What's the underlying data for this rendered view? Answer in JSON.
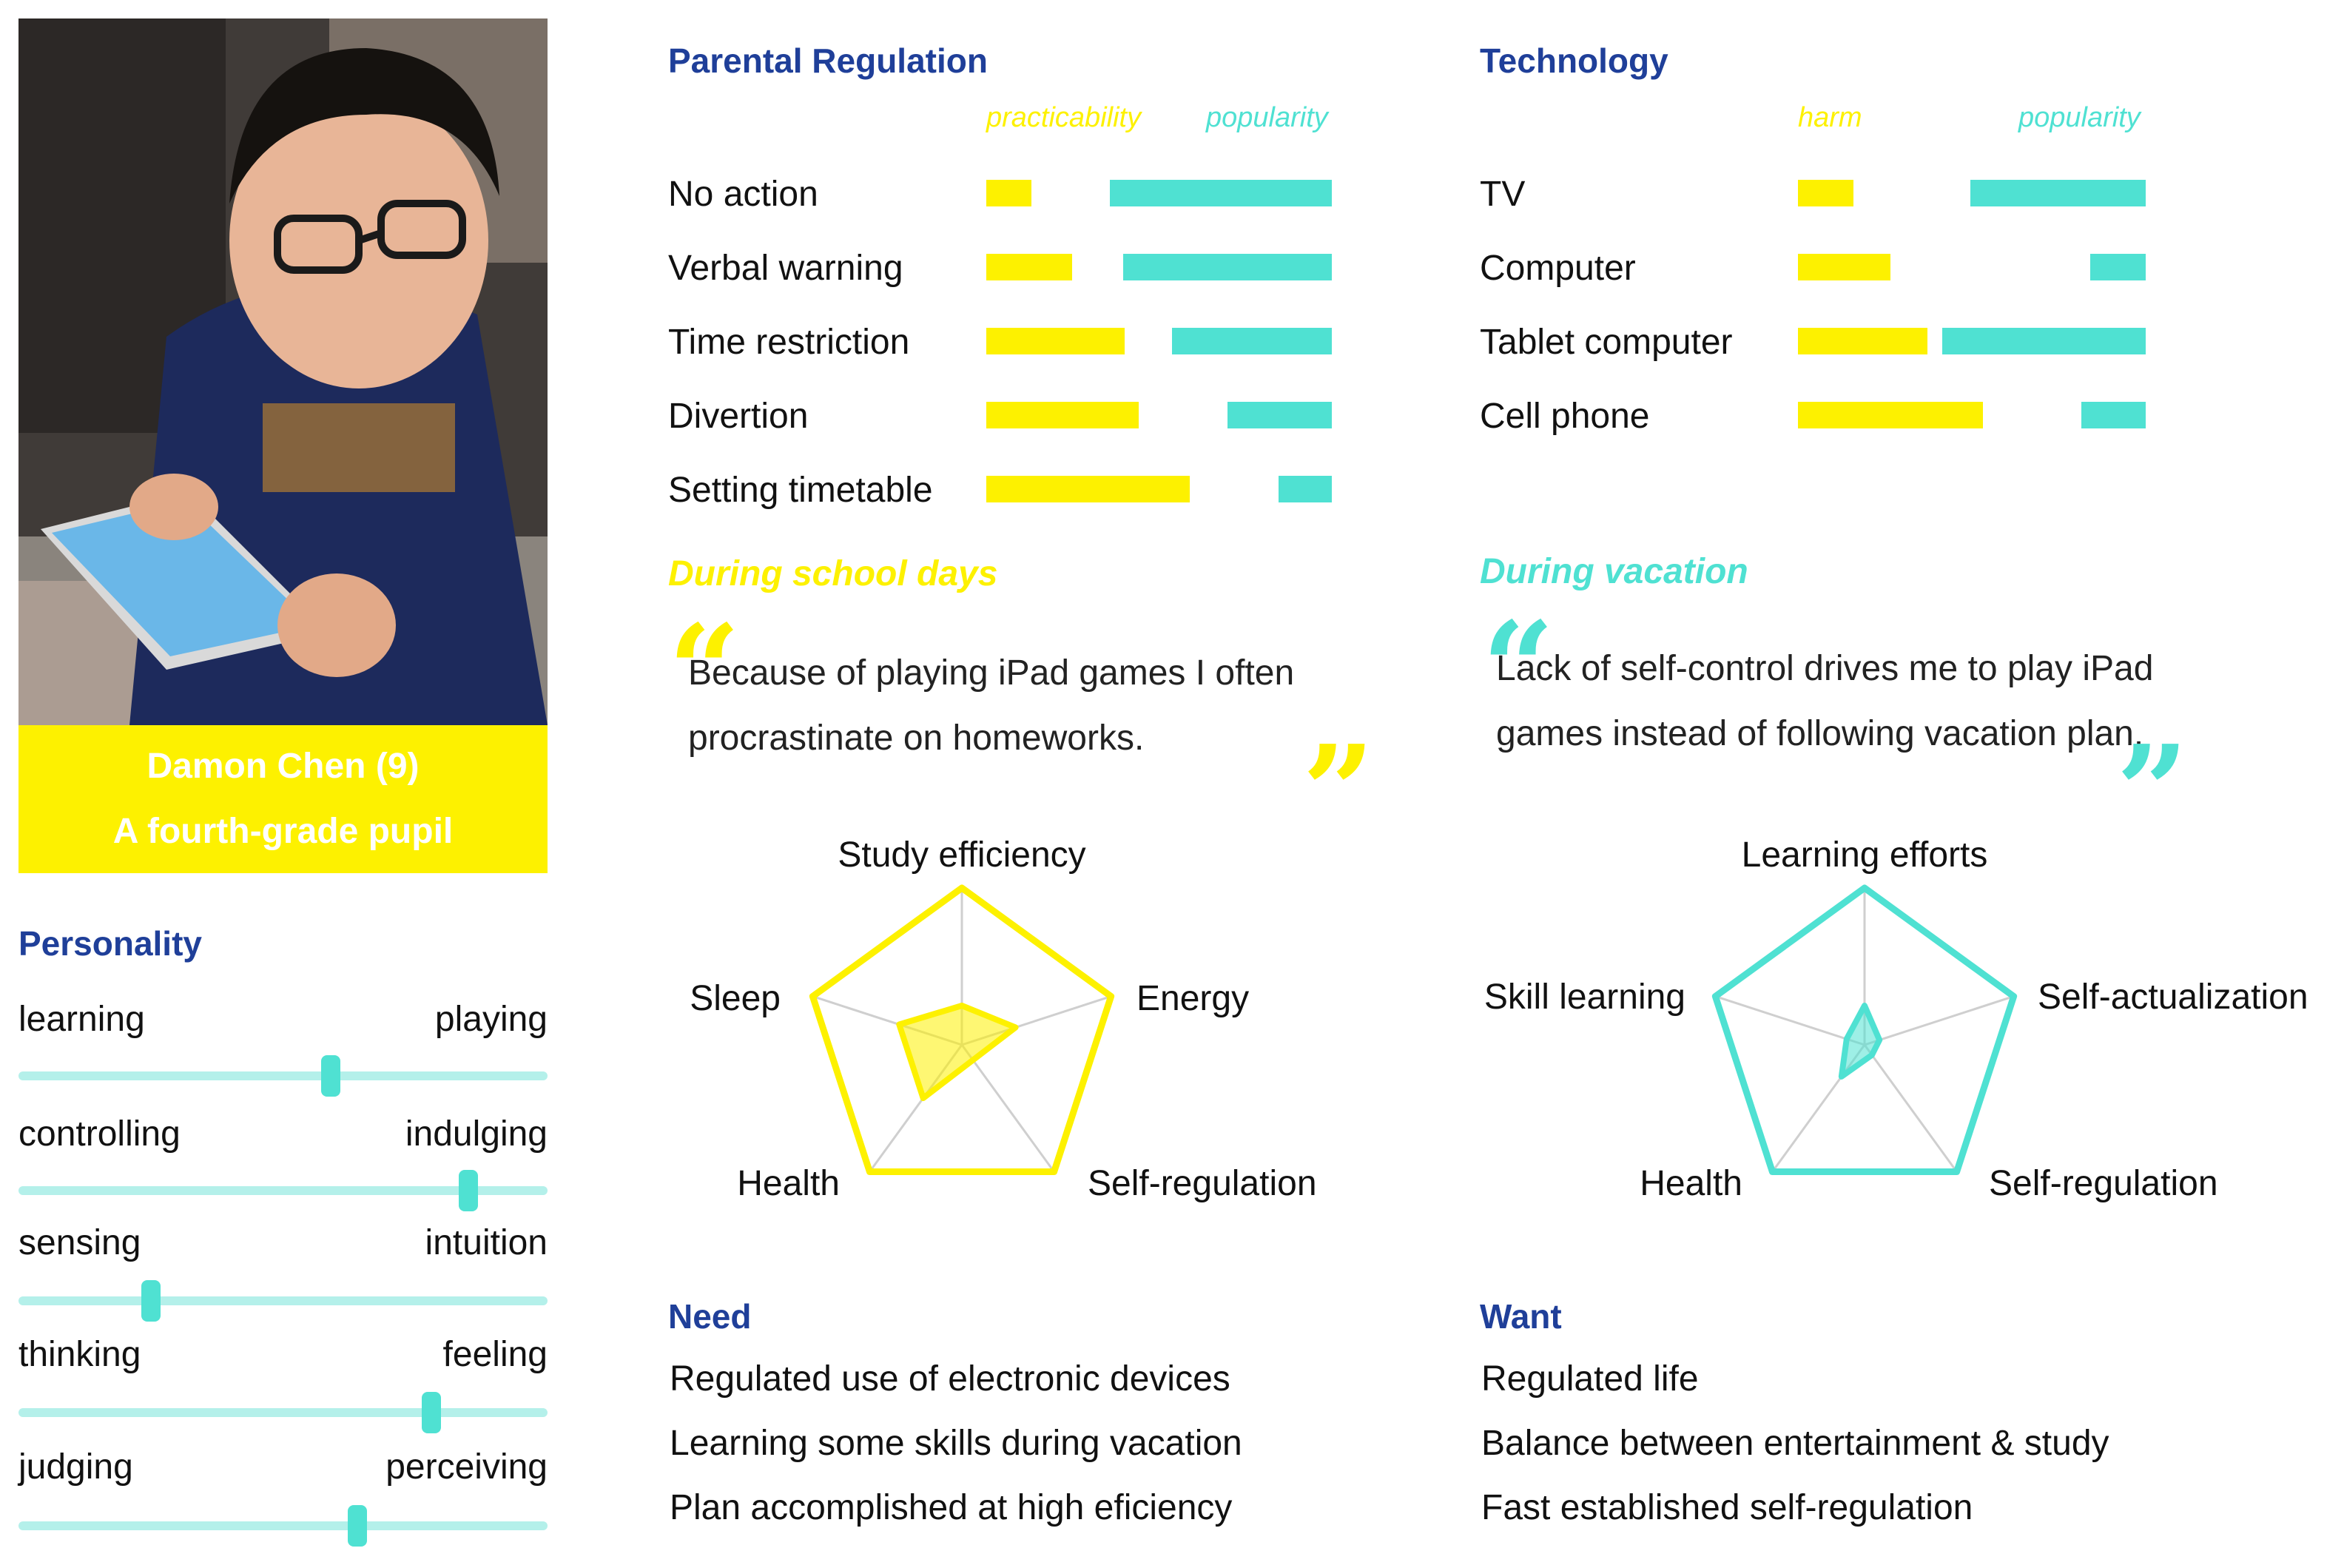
{
  "profile": {
    "name_line": "Damon Chen  (9)",
    "role_line": "A fourth-grade pupil"
  },
  "personality": {
    "title": "Personality",
    "sliders": [
      {
        "left": "learning",
        "right": "playing",
        "value": 0.59
      },
      {
        "left": "controlling",
        "right": "indulging",
        "value": 0.85
      },
      {
        "left": "sensing",
        "right": "intuition",
        "value": 0.25
      },
      {
        "left": "thinking",
        "right": "feeling",
        "value": 0.78
      },
      {
        "left": "judging",
        "right": "perceiving",
        "value": 0.64
      }
    ]
  },
  "parental": {
    "title": "Parental Regulation",
    "col1": "practicability",
    "col2": "popularity",
    "rows": [
      {
        "label": "No action",
        "a": 0.22,
        "b": 1.0
      },
      {
        "label": "Verbal warning",
        "a": 0.42,
        "b": 0.94
      },
      {
        "label": "Time restriction",
        "a": 0.68,
        "b": 0.72
      },
      {
        "label": "Divertion",
        "a": 0.75,
        "b": 0.47
      },
      {
        "label": "Setting timetable",
        "a": 1.0,
        "b": 0.24
      }
    ]
  },
  "technology": {
    "title": "Technology",
    "col1": "harm",
    "col2": "popularity",
    "rows": [
      {
        "label": "TV",
        "a": 0.3,
        "b": 0.95
      },
      {
        "label": "Computer",
        "a": 0.5,
        "b": 0.3
      },
      {
        "label": "Tablet computer",
        "a": 0.7,
        "b": 1.1
      },
      {
        "label": "Cell phone",
        "a": 1.0,
        "b": 0.35
      }
    ]
  },
  "school": {
    "title": "During school days",
    "quote_line1": "Because of playing iPad games I often",
    "quote_line2": "procrastinate on homeworks.",
    "radar": {
      "axes": [
        "Study efficiency",
        "Energy",
        "Self-regulation",
        "Health",
        "Sleep"
      ],
      "values": [
        0.25,
        0.36,
        0.12,
        0.42,
        0.42
      ]
    }
  },
  "vacation": {
    "title": "During vacation",
    "quote_line1": "Lack of self-control drives me to play iPad",
    "quote_line2": "games instead of following vacation plan.",
    "radar": {
      "axes": [
        "Learning efforts",
        "Self-actualization",
        "Self-regulation",
        "Health",
        "Skill learning"
      ],
      "values": [
        0.25,
        0.1,
        0.08,
        0.25,
        0.12
      ]
    }
  },
  "need": {
    "title": "Need",
    "items": [
      "Regulated use of electronic devices",
      "Learning some skills during vacation",
      "Plan accomplished at high eficiency"
    ]
  },
  "want": {
    "title": "Want",
    "items": [
      "Regulated life",
      "Balance between entertainment & study",
      "Fast established self-regulation"
    ]
  },
  "colors": {
    "yellow": "#fdf100",
    "teal": "#4fe1d2",
    "heading": "#1f3f99"
  }
}
